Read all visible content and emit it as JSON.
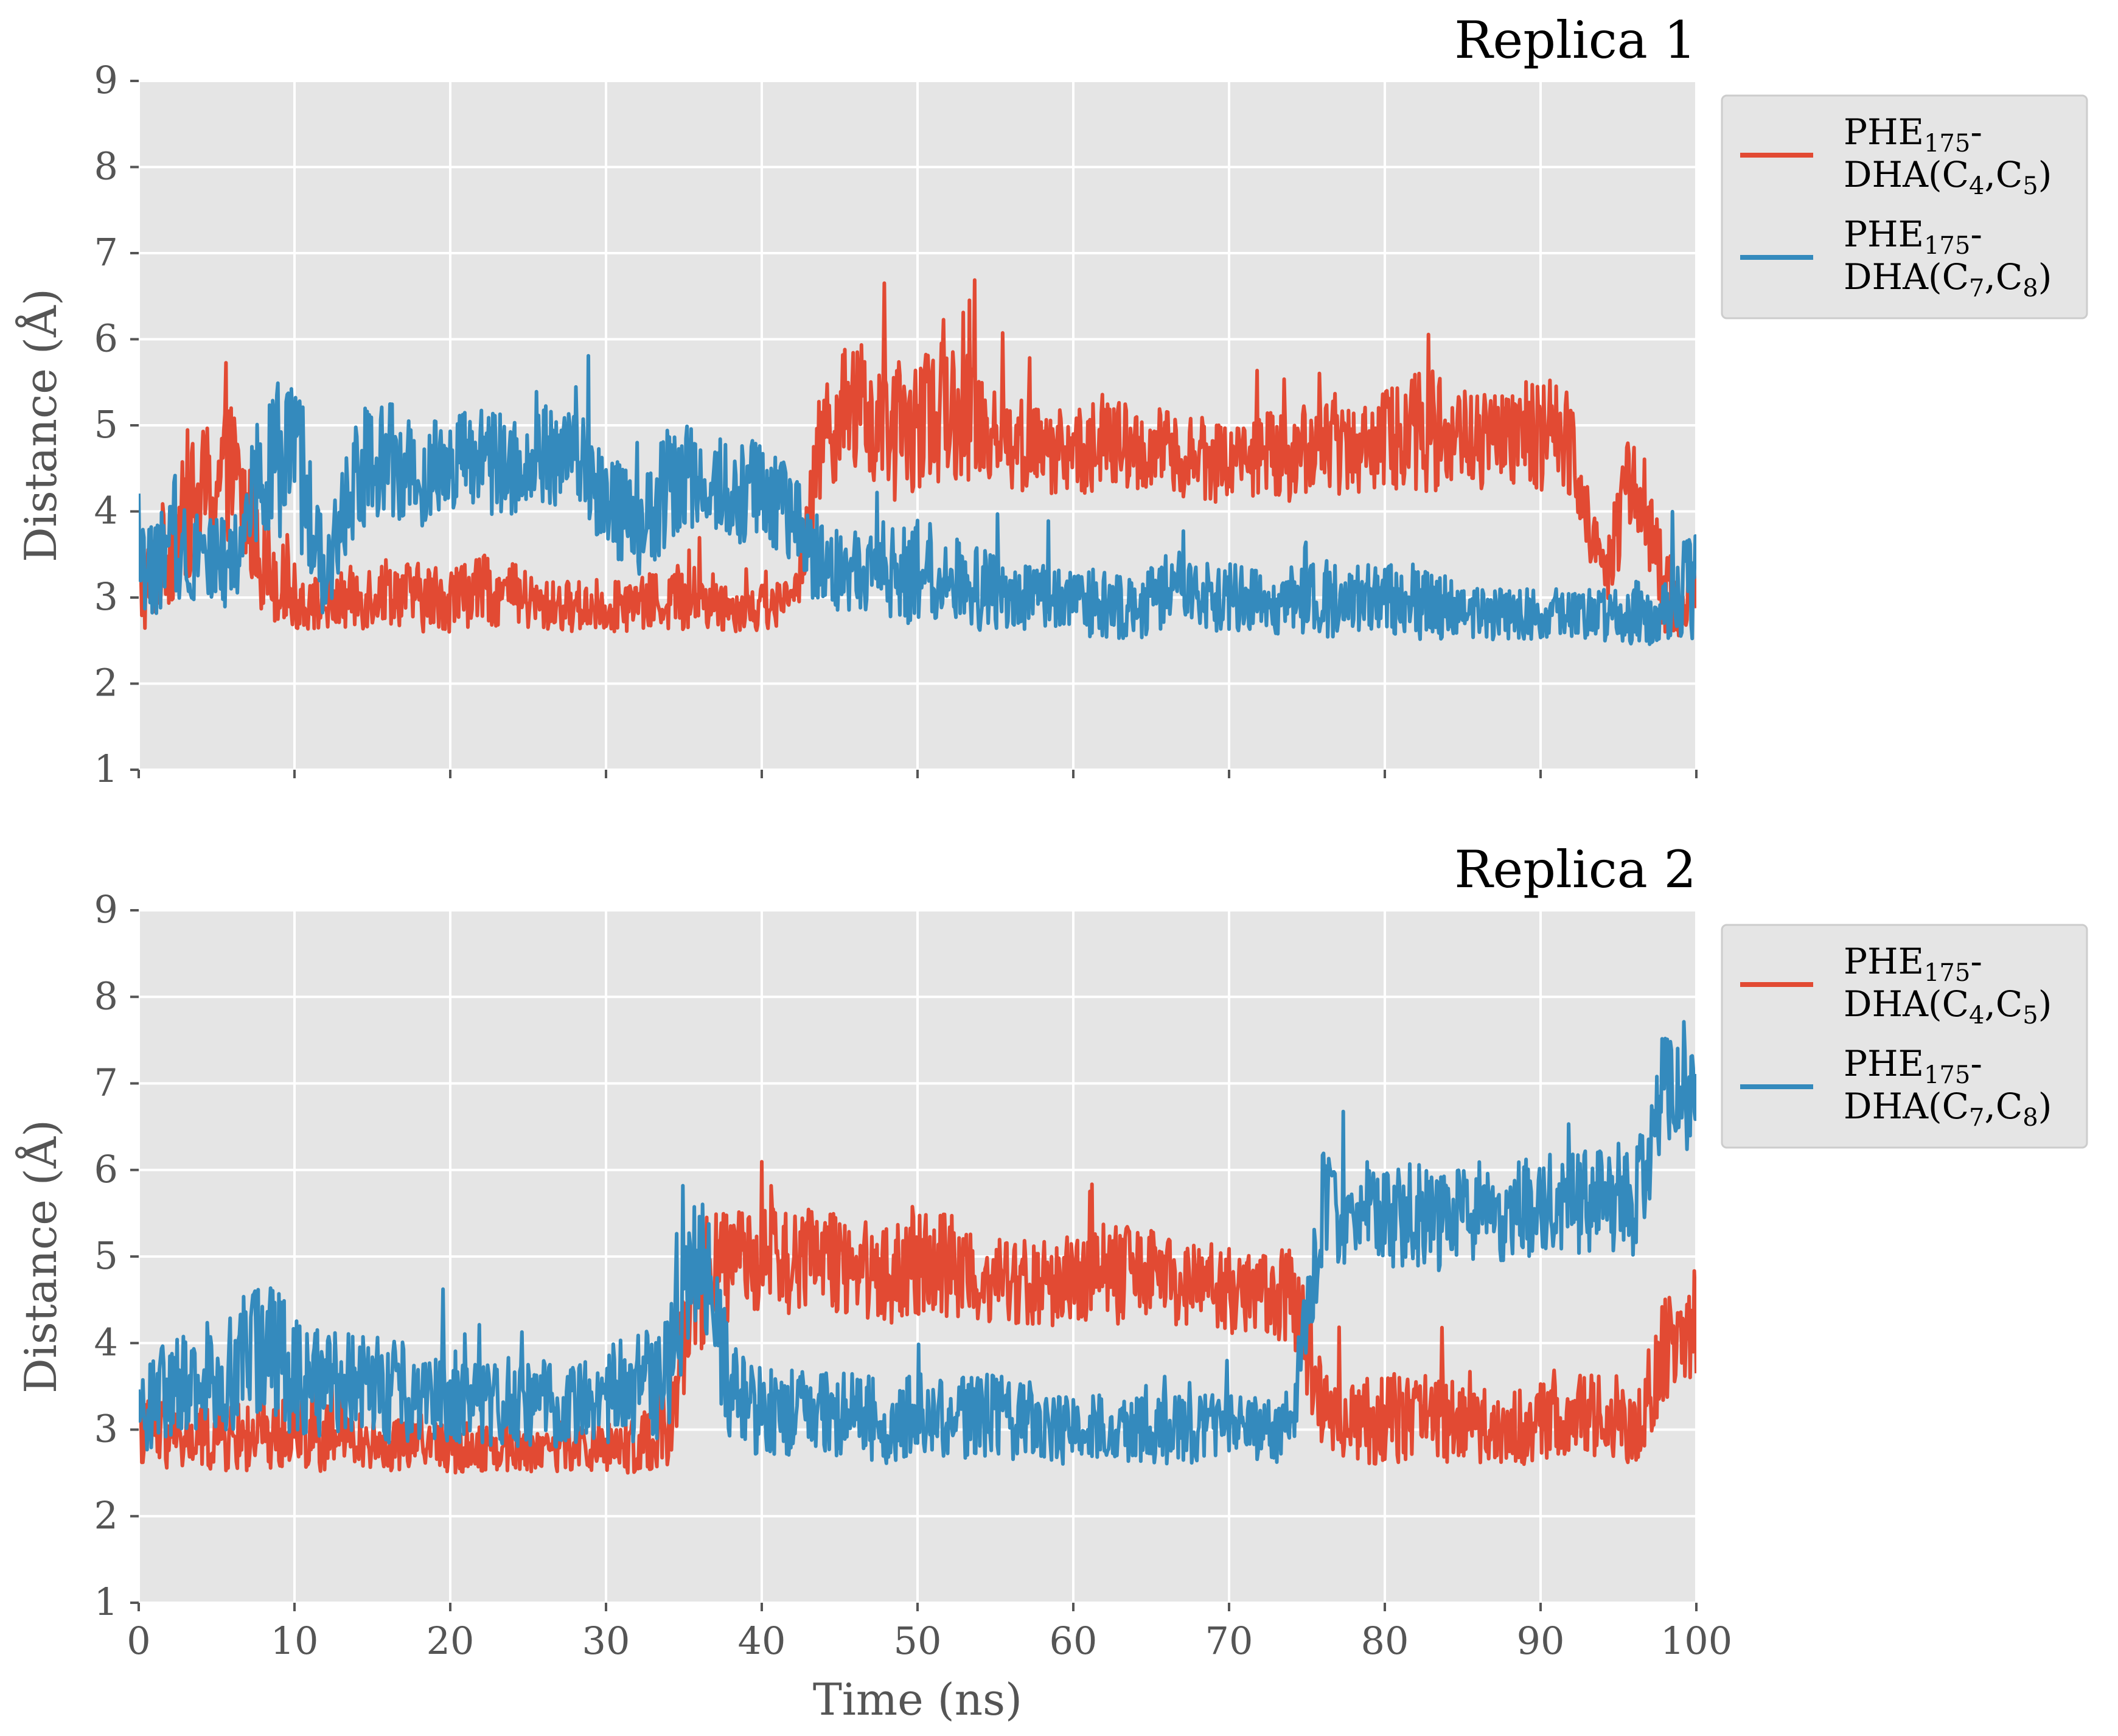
{
  "chart_data": [
    {
      "type": "line",
      "title": "Replica 1",
      "xlabel": "",
      "ylabel": "Distance (Å)",
      "xlim": [
        0,
        100
      ],
      "ylim": [
        1,
        9
      ],
      "xticks": [
        0,
        10,
        20,
        30,
        40,
        50,
        60,
        70,
        80,
        90,
        100
      ],
      "yticks": [
        1,
        2,
        3,
        4,
        5,
        6,
        7,
        8,
        9
      ],
      "x_tick_labels_shown": false,
      "grid": true,
      "legend_position": "outside top-right",
      "series": [
        {
          "name": "PHE175-DHA(C4,C5)",
          "legend_line1": "PHE",
          "legend_sub1": "175",
          "legend_line1_end": "-",
          "legend_line2": "DHA(C",
          "legend_sub2a": "4",
          "legend_mid": ",C",
          "legend_sub2b": "5",
          "legend_end": ")",
          "color": "#E24A33",
          "x": [
            0,
            2,
            4,
            6,
            8,
            10,
            12,
            14,
            16,
            18,
            20,
            22,
            24,
            26,
            28,
            30,
            32,
            34,
            36,
            38,
            40,
            42,
            44,
            46,
            48,
            50,
            52,
            54,
            56,
            58,
            60,
            62,
            64,
            66,
            68,
            70,
            72,
            74,
            76,
            78,
            80,
            82,
            84,
            86,
            88,
            90,
            92,
            94,
            96,
            98,
            100
          ],
          "y": [
            3.0,
            3.6,
            4.2,
            4.5,
            3.4,
            3.0,
            2.9,
            3.0,
            3.1,
            3.0,
            3.0,
            3.1,
            3.0,
            2.9,
            2.9,
            2.9,
            2.9,
            3.0,
            3.0,
            2.9,
            2.9,
            2.9,
            5.0,
            5.2,
            4.9,
            5.0,
            5.2,
            5.1,
            4.8,
            4.7,
            4.7,
            4.8,
            4.7,
            4.7,
            4.6,
            4.6,
            4.7,
            4.6,
            4.8,
            4.8,
            4.8,
            5.0,
            4.9,
            4.8,
            4.8,
            4.9,
            4.8,
            3.2,
            4.5,
            3.0,
            3.0
          ],
          "noise": [
            0.5,
            0.7,
            0.8,
            0.8,
            0.6,
            0.4,
            0.3,
            0.4,
            0.4,
            0.4,
            0.4,
            0.4,
            0.4,
            0.3,
            0.3,
            0.3,
            0.3,
            0.4,
            0.4,
            0.3,
            0.3,
            0.3,
            0.7,
            0.8,
            0.8,
            0.8,
            0.8,
            0.8,
            0.6,
            0.5,
            0.5,
            0.6,
            0.5,
            0.5,
            0.5,
            0.5,
            0.5,
            0.5,
            0.6,
            0.6,
            0.6,
            0.8,
            0.7,
            0.6,
            0.6,
            0.7,
            0.6,
            0.4,
            0.7,
            0.5,
            0.5
          ]
        },
        {
          "name": "PHE175-DHA(C7,C8)",
          "legend_line1": "PHE",
          "legend_sub1": "175",
          "legend_line1_end": "-",
          "legend_line2": "DHA(C",
          "legend_sub2a": "7",
          "legend_mid": ",C",
          "legend_sub2b": "8",
          "legend_end": ")",
          "color": "#348ABD",
          "x": [
            0,
            2,
            4,
            6,
            8,
            10,
            12,
            14,
            16,
            18,
            20,
            22,
            24,
            26,
            28,
            30,
            32,
            34,
            36,
            38,
            40,
            42,
            44,
            46,
            48,
            50,
            52,
            54,
            56,
            58,
            60,
            62,
            64,
            66,
            68,
            70,
            72,
            74,
            76,
            78,
            80,
            82,
            84,
            86,
            88,
            90,
            92,
            94,
            96,
            98,
            100
          ],
          "y": [
            3.2,
            3.5,
            3.6,
            3.3,
            4.6,
            4.6,
            3.2,
            4.5,
            4.6,
            4.4,
            4.6,
            4.6,
            4.5,
            4.7,
            4.6,
            4.2,
            3.7,
            4.3,
            4.4,
            4.2,
            4.3,
            3.9,
            3.3,
            3.3,
            3.2,
            3.3,
            3.3,
            3.1,
            3.0,
            3.0,
            3.0,
            2.9,
            2.9,
            3.0,
            3.0,
            3.0,
            2.9,
            3.0,
            3.0,
            3.0,
            3.0,
            2.9,
            2.9,
            2.8,
            2.8,
            2.8,
            2.8,
            2.8,
            2.8,
            2.9,
            3.2
          ],
          "noise": [
            0.5,
            0.6,
            0.6,
            0.5,
            0.8,
            1.0,
            0.5,
            0.7,
            0.7,
            0.6,
            0.6,
            0.6,
            0.6,
            0.6,
            0.6,
            0.6,
            0.6,
            0.7,
            0.7,
            0.6,
            0.6,
            0.6,
            0.5,
            0.5,
            0.5,
            0.6,
            0.5,
            0.5,
            0.4,
            0.4,
            0.4,
            0.4,
            0.4,
            0.4,
            0.4,
            0.4,
            0.4,
            0.4,
            0.5,
            0.4,
            0.4,
            0.4,
            0.4,
            0.3,
            0.3,
            0.3,
            0.3,
            0.3,
            0.4,
            0.4,
            0.7
          ]
        }
      ]
    },
    {
      "type": "line",
      "title": "Replica 2",
      "xlabel": "Time (ns)",
      "ylabel": "Distance (Å)",
      "xlim": [
        0,
        100
      ],
      "ylim": [
        1,
        9
      ],
      "xticks": [
        0,
        10,
        20,
        30,
        40,
        50,
        60,
        70,
        80,
        90,
        100
      ],
      "yticks": [
        1,
        2,
        3,
        4,
        5,
        6,
        7,
        8,
        9
      ],
      "x_tick_labels_shown": true,
      "grid": true,
      "legend_position": "outside top-right",
      "series": [
        {
          "name": "PHE175-DHA(C4,C5)",
          "legend_line1": "PHE",
          "legend_sub1": "175",
          "legend_line1_end": "-",
          "legend_line2": "DHA(C",
          "legend_sub2a": "4",
          "legend_mid": ",C",
          "legend_sub2b": "5",
          "legend_end": ")",
          "color": "#E24A33",
          "x": [
            0,
            2,
            4,
            6,
            8,
            10,
            12,
            14,
            16,
            18,
            20,
            22,
            24,
            26,
            28,
            30,
            32,
            34,
            36,
            38,
            40,
            42,
            44,
            46,
            48,
            50,
            52,
            54,
            56,
            58,
            60,
            62,
            64,
            66,
            68,
            70,
            72,
            74,
            76,
            78,
            80,
            82,
            84,
            86,
            88,
            90,
            92,
            94,
            96,
            98,
            100
          ],
          "y": [
            3.0,
            2.9,
            2.9,
            2.9,
            2.9,
            3.0,
            2.9,
            2.9,
            2.8,
            2.9,
            2.8,
            2.8,
            2.8,
            2.8,
            2.8,
            2.8,
            2.8,
            3.1,
            4.6,
            4.9,
            5.0,
            4.9,
            5.0,
            4.9,
            4.8,
            4.9,
            4.9,
            4.8,
            4.7,
            4.7,
            4.7,
            4.8,
            4.8,
            4.7,
            4.7,
            4.6,
            4.6,
            4.6,
            3.2,
            3.1,
            3.1,
            3.2,
            3.1,
            3.0,
            3.0,
            3.1,
            3.1,
            3.2,
            3.0,
            3.9,
            4.2
          ],
          "noise": [
            0.4,
            0.4,
            0.4,
            0.4,
            0.4,
            0.4,
            0.4,
            0.3,
            0.3,
            0.3,
            0.3,
            0.3,
            0.3,
            0.3,
            0.3,
            0.3,
            0.3,
            0.5,
            0.9,
            0.6,
            0.6,
            0.6,
            0.6,
            0.6,
            0.6,
            0.6,
            0.6,
            0.6,
            0.5,
            0.5,
            0.5,
            0.6,
            0.6,
            0.5,
            0.5,
            0.5,
            0.5,
            0.6,
            0.5,
            0.5,
            0.5,
            0.6,
            0.5,
            0.4,
            0.4,
            0.5,
            0.5,
            0.5,
            0.4,
            0.7,
            0.7
          ]
        },
        {
          "name": "PHE175-DHA(C7,C8)",
          "legend_line1": "PHE",
          "legend_sub1": "175",
          "legend_line1_end": "-",
          "legend_line2": "DHA(C",
          "legend_sub2a": "7",
          "legend_mid": ",C",
          "legend_sub2b": "8",
          "legend_end": ")",
          "color": "#348ABD",
          "x": [
            0,
            2,
            4,
            6,
            8,
            10,
            12,
            14,
            16,
            18,
            20,
            22,
            24,
            26,
            28,
            30,
            32,
            34,
            36,
            38,
            40,
            42,
            44,
            46,
            48,
            50,
            52,
            54,
            56,
            58,
            60,
            62,
            64,
            66,
            68,
            70,
            72,
            74,
            76,
            78,
            80,
            82,
            84,
            86,
            88,
            90,
            92,
            94,
            96,
            98,
            100
          ],
          "y": [
            3.2,
            3.5,
            3.6,
            3.7,
            4.0,
            3.6,
            3.5,
            3.6,
            3.4,
            3.5,
            3.4,
            3.3,
            3.3,
            3.3,
            3.3,
            3.4,
            3.5,
            3.6,
            5.2,
            3.4,
            3.2,
            3.2,
            3.2,
            3.2,
            3.1,
            3.2,
            3.1,
            3.2,
            3.1,
            3.0,
            3.0,
            3.0,
            3.0,
            3.0,
            3.0,
            3.0,
            3.0,
            3.0,
            5.6,
            5.5,
            5.4,
            5.5,
            5.4,
            5.5,
            5.5,
            5.6,
            5.6,
            5.7,
            5.6,
            7.0,
            6.8
          ],
          "noise": [
            0.5,
            0.6,
            0.6,
            0.7,
            0.9,
            0.7,
            0.6,
            0.6,
            0.6,
            0.6,
            0.6,
            0.5,
            0.5,
            0.5,
            0.5,
            0.6,
            0.7,
            0.7,
            0.8,
            0.6,
            0.5,
            0.5,
            0.5,
            0.5,
            0.5,
            0.5,
            0.5,
            0.5,
            0.5,
            0.4,
            0.4,
            0.4,
            0.4,
            0.4,
            0.4,
            0.4,
            0.4,
            0.4,
            0.7,
            0.6,
            0.6,
            0.6,
            0.6,
            0.6,
            0.6,
            0.6,
            0.6,
            0.6,
            0.6,
            0.7,
            0.6
          ]
        }
      ]
    }
  ]
}
